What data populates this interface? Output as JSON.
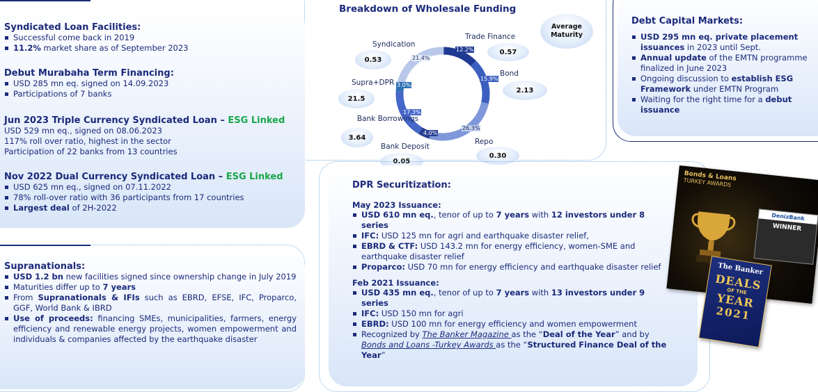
{
  "left_panel": {
    "syndicated": {
      "title": "Syndicated Loan Facilities:",
      "b1": "Successful come back in 2019",
      "b2_bold": "11.2%",
      "b2_rest": " market share as of September 2023"
    },
    "murabaha": {
      "title": "Debut Murabaha Term Financing:",
      "b1": "USD 285 mn eq. signed on 14.09.2023",
      "b2": "Participations of 7 banks"
    },
    "triple": {
      "title": "Jun 2023 Triple Currency Syndicated Loan – ",
      "esg": "ESG Linked",
      "l1": "USD 529 mn eq., signed on 08.06.2023",
      "l2": "117% roll over ratio, highest in the sector",
      "l3": "Participation of 22 banks from 13 countries"
    },
    "dual": {
      "title": "Nov 2022 Dual Currency Syndicated Loan – ",
      "esg": "ESG Linked",
      "b1": "USD 625 mn eq., signed on 07.11.2022",
      "b2": "78% roll-over ratio with 36 participants from 17 countries",
      "b3_bold": "Largest deal",
      "b3_rest": " of 2H-2022"
    }
  },
  "supra_panel": {
    "title": "Supranationals:",
    "b1_bold": "USD 1.2 bn",
    "b1_rest": " new facilities signed since ownership change in July 2019",
    "b2_rest": "Maturities differ up to ",
    "b2_bold": "7 years",
    "b3_a": "From ",
    "b3_bold": "Supranationals & IFIs",
    "b3_rest": " such as EBRD, EFSE, IFC, Proparco, GGF, World Bank & IBRD",
    "b4_bold": "Use of proceeds:",
    "b4_rest": " financing SMEs, municipalities, farmers, energy efficiency and renewable energy projects, women empowerment and individuals & companies affected by the earthquake disaster"
  },
  "chart": {
    "title": "Breakdown of Wholesale Funding",
    "avg_label": "Average Maturity"
  },
  "chart_data": {
    "type": "pie",
    "title": "Breakdown of Wholesale Funding",
    "categories": [
      "Trade Finance",
      "Bond",
      "Repo",
      "Bank Deposit",
      "Bank Borrowings",
      "Supra+DPR",
      "Syndication"
    ],
    "values": [
      12.2,
      15.9,
      26.3,
      4.0,
      17.3,
      3.0,
      21.4
    ],
    "value_labels": [
      "12.2%",
      "15.9%",
      "26.3%",
      "4.0%",
      "17.3%",
      "3.0%",
      "21.4%"
    ],
    "average_maturity": [
      "0.57",
      "2.13",
      "0.30",
      "0.05",
      "3.64",
      "21.5",
      "0.53"
    ],
    "colors": [
      "#1f3a93",
      "#3b5fc0",
      "#7f98d9",
      "#2a3f93",
      "#4666c8",
      "#2d71b6",
      "#b9c8ea"
    ]
  },
  "dcm_panel": {
    "title": "Debt Capital Markets:",
    "b1_bold": "USD 295 mn eq. private placement issuances",
    "b1_rest": " in 2023 until Sept.",
    "b2_bold": "Annual update",
    "b2_rest": " of the EMTN programme finalized in June 2023",
    "b3_a": "Ongoing discussion to ",
    "b3_bold": "establish ESG Framework",
    "b3_rest": " under EMTN Program",
    "b4_a": "Waiting for the right time for a ",
    "b4_bold": "debut issuance"
  },
  "dpr_panel": {
    "title": "DPR Securitization:",
    "may": {
      "heading": "May 2023 Issuance:",
      "b1_bold": "USD 610 mn eq.",
      "b1_mid": ", tenor of up to ",
      "b1_bold2": "7 years",
      "b1_mid2": " with ",
      "b1_bold3": "12 investors under 8 series",
      "b2_bold": "IFC:",
      "b2_rest": " USD 125 mn for agri and earthquake disaster relief,",
      "b3_bold": "EBRD & CTF:",
      "b3_rest": " USD 143.2 mn for energy efficiency, women-SME and earthquake disaster relief",
      "b4_bold": "Proparco:",
      "b4_rest": " USD 70 mn for energy efficiency and earthquake disaster relief"
    },
    "feb": {
      "heading": "Feb 2021 Issuance:",
      "b1_bold": "USD 435 mn eq.",
      "b1_mid": ", tenor of up to ",
      "b1_bold2": "7 years",
      "b1_mid2": " with ",
      "b1_bold3": "13 investors under 9 series",
      "b2_bold": "IFC:",
      "b2_rest": " USD 150 mn for agri",
      "b3_bold": "EBRD:",
      "b3_rest": " USD 100 mn for energy efficiency and women empowerment",
      "b4_a": "Recognized by ",
      "b4_link1": "The Banker Magazine ",
      "b4_b": "as the “",
      "b4_bold1": "Deal of the Year",
      "b4_c": "” and by ",
      "b4_link2": "Bonds and Loans -Turkey Awards ",
      "b4_d": "as the “",
      "b4_bold2": "Structured Finance Deal of the Year",
      "b4_e": "”"
    }
  },
  "awards": {
    "bl_title": "Bonds & Loans",
    "bl_sub": "TURKEY AWARDS",
    "winner_brand": "DenizBank",
    "winner": "WINNER",
    "banker": "The Banker",
    "deals": "DEALS",
    "of_the": "OF THE",
    "year": "YEAR",
    "yr": "2021"
  }
}
